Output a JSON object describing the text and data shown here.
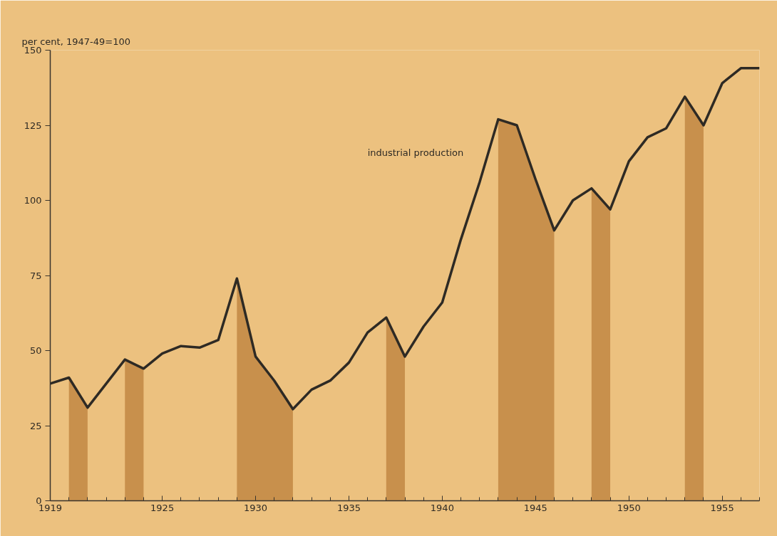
{
  "chart_data": {
    "type": "line",
    "ylabel": "per cent, 1947-49=100",
    "x": [
      1919,
      1920,
      1921,
      1922,
      1923,
      1924,
      1925,
      1926,
      1927,
      1928,
      1929,
      1930,
      1931,
      1932,
      1933,
      1934,
      1935,
      1936,
      1937,
      1938,
      1939,
      1940,
      1941,
      1942,
      1943,
      1944,
      1945,
      1946,
      1947,
      1948,
      1949,
      1950,
      1951,
      1952,
      1953,
      1954,
      1955,
      1956,
      1957
    ],
    "series": [
      {
        "name": "industrial production",
        "color": "#2e2a24",
        "values": [
          39,
          41,
          31,
          39,
          47,
          44,
          49,
          51.5,
          51,
          53.5,
          74,
          48,
          40,
          30.5,
          37,
          40,
          46,
          56,
          61,
          48,
          58,
          66,
          87,
          106,
          127,
          125,
          107,
          90,
          100,
          104,
          97,
          113,
          121,
          124,
          134.5,
          125,
          139,
          144,
          144
        ]
      },
      {
        "type": "area",
        "color": "#c8904c",
        "values": [
          null,
          41,
          31,
          null,
          47,
          44,
          null,
          null,
          null,
          null,
          74,
          48,
          40,
          30.5,
          null,
          null,
          null,
          null,
          61,
          48,
          null,
          null,
          null,
          null,
          127,
          125,
          107,
          90,
          null,
          104,
          97,
          null,
          null,
          null,
          134.5,
          125,
          null,
          null,
          null
        ]
      }
    ],
    "xlim": [
      1919,
      1957
    ],
    "xticks": [
      1919,
      {
        "value": 1920,
        "label": null
      },
      {
        "value": 1921,
        "label": null
      },
      {
        "value": 1922,
        "label": null
      },
      {
        "value": 1923,
        "label": null
      },
      {
        "value": 1924,
        "label": null
      },
      1925,
      {
        "value": 1926,
        "label": null
      },
      {
        "value": 1927,
        "label": null
      },
      {
        "value": 1928,
        "label": null
      },
      {
        "value": 1929,
        "label": null
      },
      1930,
      {
        "value": 1931,
        "label": null
      },
      {
        "value": 1932,
        "label": null
      },
      {
        "value": 1933,
        "label": null
      },
      {
        "value": 1934,
        "label": null
      },
      1935,
      {
        "value": 1936,
        "label": null
      },
      {
        "value": 1937,
        "label": null
      },
      {
        "value": 1938,
        "label": null
      },
      {
        "value": 1939,
        "label": null
      },
      1940,
      {
        "value": 1941,
        "label": null
      },
      {
        "value": 1942,
        "label": null
      },
      {
        "value": 1943,
        "label": null
      },
      {
        "value": 1944,
        "label": null
      },
      1945,
      {
        "value": 1946,
        "label": null
      },
      {
        "value": 1947,
        "label": null
      },
      {
        "value": 1948,
        "label": null
      },
      {
        "value": 1949,
        "label": null
      },
      1950,
      {
        "value": 1951,
        "label": null
      },
      {
        "value": 1952,
        "label": null
      },
      {
        "value": 1953,
        "label": null
      },
      {
        "value": 1954,
        "label": null
      },
      1955,
      {
        "value": 1956,
        "label": null
      },
      {
        "value": 1957,
        "label": null
      }
    ],
    "ylim": [
      0,
      150
    ],
    "yticks": [
      0,
      25,
      50,
      75,
      100,
      125,
      150
    ],
    "grid": false,
    "legend": false,
    "marker": "none",
    "line_style": "solid"
  }
}
